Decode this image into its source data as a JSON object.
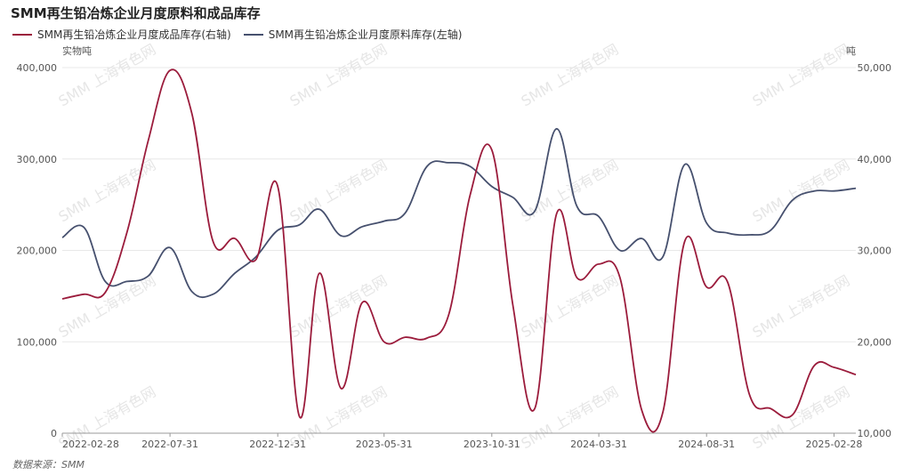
{
  "chart_data": {
    "type": "line",
    "title": "SMM再生铅冶炼企业月度原料和成品库存",
    "left_axis": {
      "unit_label": "实物吨",
      "ylim": [
        0,
        400000
      ],
      "ticks": [
        "0",
        "100,000",
        "200,000",
        "300,000",
        "400,000"
      ]
    },
    "right_axis": {
      "unit_label": "吨",
      "ylim": [
        10000,
        50000
      ],
      "ticks": [
        "10,000",
        "20,000",
        "30,000",
        "40,000",
        "50,000"
      ]
    },
    "x_range": [
      "2022-02-28",
      "2025-03-31"
    ],
    "x_tick_labels": [
      "2022-02-28",
      "2022-07-31",
      "2022-12-31",
      "2023-05-31",
      "2023-10-31",
      "2024-03-31",
      "2024-08-31",
      "2025-02-28"
    ],
    "grid": true,
    "legend_position": "top-left",
    "series": [
      {
        "name": "SMM再生铅冶炼企业月度成品库存(右轴)",
        "axis": "right",
        "color": "#9b1c3c",
        "points": [
          [
            "2022-02-28",
            24700
          ],
          [
            "2022-03-31",
            25200
          ],
          [
            "2022-04-30",
            25400
          ],
          [
            "2022-05-31",
            32000
          ],
          [
            "2022-06-30",
            42000
          ],
          [
            "2022-07-31",
            49700
          ],
          [
            "2022-08-31",
            45000
          ],
          [
            "2022-09-30",
            31000
          ],
          [
            "2022-10-31",
            31300
          ],
          [
            "2022-11-30",
            29000
          ],
          [
            "2022-12-31",
            37000
          ],
          [
            "2023-01-31",
            11800
          ],
          [
            "2023-02-28",
            27500
          ],
          [
            "2023-03-31",
            14900
          ],
          [
            "2023-04-30",
            24300
          ],
          [
            "2023-05-31",
            20000
          ],
          [
            "2023-06-30",
            20500
          ],
          [
            "2023-07-31",
            20400
          ],
          [
            "2023-08-31",
            23000
          ],
          [
            "2023-09-30",
            36000
          ],
          [
            "2023-10-31",
            41000
          ],
          [
            "2023-11-30",
            24000
          ],
          [
            "2023-12-31",
            12700
          ],
          [
            "2024-01-31",
            34000
          ],
          [
            "2024-02-29",
            27000
          ],
          [
            "2024-03-31",
            28500
          ],
          [
            "2024-04-30",
            27000
          ],
          [
            "2024-05-31",
            12500
          ],
          [
            "2024-06-30",
            12300
          ],
          [
            "2024-07-31",
            31000
          ],
          [
            "2024-08-31",
            26000
          ],
          [
            "2024-09-30",
            26500
          ],
          [
            "2024-10-31",
            14200
          ],
          [
            "2024-11-30",
            12700
          ],
          [
            "2024-12-31",
            12000
          ],
          [
            "2025-01-31",
            17400
          ],
          [
            "2025-02-28",
            17200
          ],
          [
            "2025-03-31",
            16400
          ]
        ]
      },
      {
        "name": "SMM再生铅冶炼企业月度原料库存(左轴)",
        "axis": "left",
        "color": "#46506e",
        "points": [
          [
            "2022-02-28",
            214000
          ],
          [
            "2022-03-31",
            225000
          ],
          [
            "2022-04-30",
            166000
          ],
          [
            "2022-05-31",
            166000
          ],
          [
            "2022-06-30",
            172000
          ],
          [
            "2022-07-31",
            203000
          ],
          [
            "2022-08-31",
            155000
          ],
          [
            "2022-09-30",
            152000
          ],
          [
            "2022-10-31",
            175000
          ],
          [
            "2022-11-30",
            193000
          ],
          [
            "2022-12-31",
            222000
          ],
          [
            "2023-01-31",
            228000
          ],
          [
            "2023-02-28",
            245000
          ],
          [
            "2023-03-31",
            216000
          ],
          [
            "2023-04-30",
            226000
          ],
          [
            "2023-05-31",
            232000
          ],
          [
            "2023-06-30",
            241000
          ],
          [
            "2023-07-31",
            292000
          ],
          [
            "2023-08-31",
            296000
          ],
          [
            "2023-09-30",
            292000
          ],
          [
            "2023-10-31",
            270000
          ],
          [
            "2023-11-30",
            258000
          ],
          [
            "2023-12-31",
            243000
          ],
          [
            "2024-01-31",
            333000
          ],
          [
            "2024-02-29",
            248000
          ],
          [
            "2024-03-31",
            237000
          ],
          [
            "2024-04-30",
            200000
          ],
          [
            "2024-05-31",
            213000
          ],
          [
            "2024-06-30",
            193000
          ],
          [
            "2024-07-31",
            294000
          ],
          [
            "2024-08-31",
            230000
          ],
          [
            "2024-09-30",
            219000
          ],
          [
            "2024-10-31",
            217000
          ],
          [
            "2024-11-30",
            222000
          ],
          [
            "2024-12-31",
            255000
          ],
          [
            "2025-01-31",
            265000
          ],
          [
            "2025-02-28",
            265000
          ],
          [
            "2025-03-31",
            268000
          ]
        ]
      }
    ]
  },
  "watermark_text": "SMM 上海有色网",
  "source": "数据来源：SMM"
}
